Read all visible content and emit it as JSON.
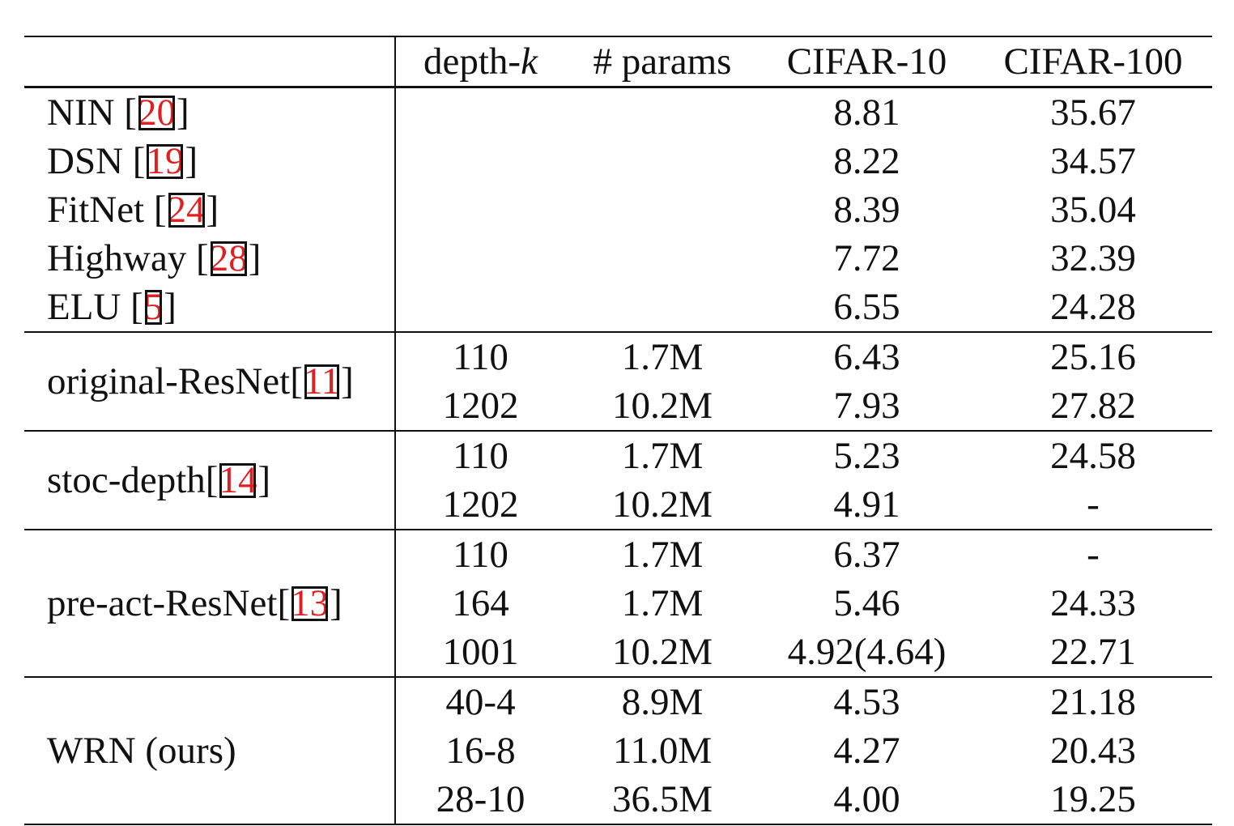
{
  "header": {
    "depth_prefix": "depth-",
    "depth_k": "k",
    "params": "# params",
    "cifar10": "CIFAR-10",
    "cifar100": "CIFAR-100"
  },
  "simple_rows": [
    {
      "name": "NIN [",
      "ref": "20",
      "close": "]",
      "cifar10": "8.81",
      "cifar100": "35.67"
    },
    {
      "name": "DSN [",
      "ref": "19",
      "close": "]",
      "cifar10": "8.22",
      "cifar100": "34.57"
    },
    {
      "name": "FitNet [",
      "ref": "24",
      "close": "]",
      "cifar10": "8.39",
      "cifar100": "35.04"
    },
    {
      "name": "Highway [",
      "ref": "28",
      "close": "]",
      "cifar10": "7.72",
      "cifar100": "32.39"
    },
    {
      "name": "ELU [",
      "ref": "5",
      "close": "]",
      "cifar10": "6.55",
      "cifar100": "24.28"
    }
  ],
  "groups": [
    {
      "name": "original-ResNet[",
      "ref": "11",
      "close": "]",
      "rows": [
        {
          "depth": "110",
          "params": "1.7M",
          "cifar10": "6.43",
          "cifar100": "25.16"
        },
        {
          "depth": "1202",
          "params": "10.2M",
          "cifar10": "7.93",
          "cifar100": "27.82"
        }
      ]
    },
    {
      "name": "stoc-depth[",
      "ref": "14",
      "close": "]",
      "rows": [
        {
          "depth": "110",
          "params": "1.7M",
          "cifar10": "5.23",
          "cifar100": "24.58"
        },
        {
          "depth": "1202",
          "params": "10.2M",
          "cifar10": "4.91",
          "cifar100": "-"
        }
      ]
    },
    {
      "name": "pre-act-ResNet[",
      "ref": "13",
      "close": "]",
      "rows": [
        {
          "depth": "110",
          "params": "1.7M",
          "cifar10": "6.37",
          "cifar100": "-"
        },
        {
          "depth": "164",
          "params": "1.7M",
          "cifar10": "5.46",
          "cifar100": "24.33"
        },
        {
          "depth": "1001",
          "params": "10.2M",
          "cifar10": "4.92(4.64)",
          "cifar100": "22.71"
        }
      ]
    },
    {
      "name": "WRN (ours)",
      "ref": "",
      "close": "",
      "rows": [
        {
          "depth": "40-4",
          "params": "8.9M",
          "cifar10": "4.53",
          "cifar100": "21.18"
        },
        {
          "depth": "16-8",
          "params": "11.0M",
          "cifar10": "4.27",
          "cifar100": "20.43"
        },
        {
          "depth": "28-10",
          "params": "36.5M",
          "cifar10": "4.00",
          "cifar100": "19.25",
          "bold": true
        }
      ]
    }
  ]
}
